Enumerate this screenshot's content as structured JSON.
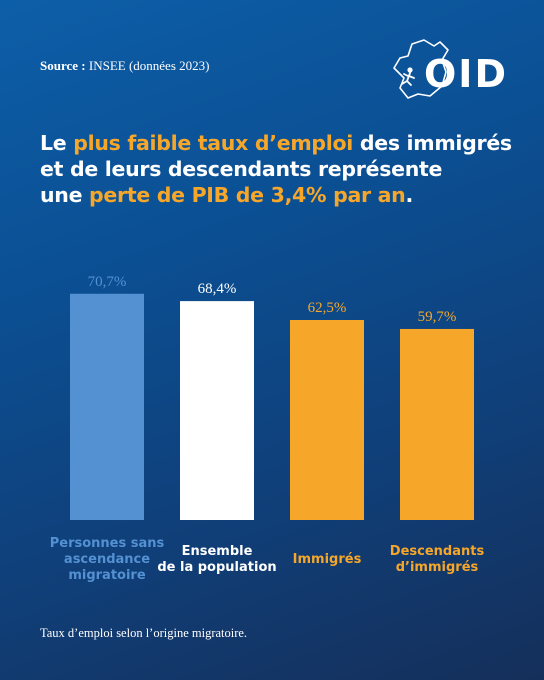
{
  "source": {
    "label": "Source :",
    "text": "INSEE (données 2023)"
  },
  "logo": {
    "text": "OID",
    "icon": "france-map-runner-icon"
  },
  "headline": {
    "line1_a": "Le ",
    "line1_b": "plus faible taux d’emploi",
    "line1_c": " des immigrés",
    "line2": "et de leurs descendants représente",
    "line3_a": "une ",
    "line3_b": "perte de PIB de 3,4% par an",
    "line3_c": "."
  },
  "colors": {
    "accent": "#f6a72a",
    "blue_bar": "#5391d2",
    "white_bar": "#ffffff",
    "background": "#0b4f93"
  },
  "chart_data": {
    "type": "bar",
    "categories": [
      [
        "Personnes sans",
        "ascendance",
        "migratoire"
      ],
      [
        "Ensemble",
        "de la population"
      ],
      [
        "Immigrés"
      ],
      [
        "Descendants",
        "d’immigrés"
      ]
    ],
    "values": [
      70.7,
      68.4,
      62.5,
      59.7
    ],
    "value_labels": [
      "70,7%",
      "68,4%",
      "62,5%",
      "59,7%"
    ],
    "bar_colors": [
      "#5391d2",
      "#ffffff",
      "#f6a72a",
      "#f6a72a"
    ],
    "label_colors": [
      "#5391d2",
      "#ffffff",
      "#f6a72a",
      "#f6a72a"
    ]
  },
  "caption": "Taux d’emploi selon l’origine migratoire."
}
